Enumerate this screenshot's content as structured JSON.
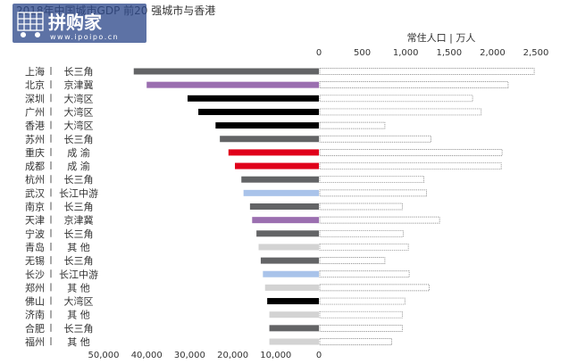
{
  "logo": {
    "name": "拼购家",
    "url": "www.ipoipo.cn"
  },
  "chart_data": {
    "type": "bar",
    "title": "2018年中国城市GDP 前20 强城市与香港",
    "right_axis_label": "常住人口 | 万人",
    "left_axis": {
      "range": [
        0,
        50000
      ],
      "ticks": [
        "50,000",
        "40,000",
        "30,000",
        "20,000",
        "10,000",
        "0"
      ]
    },
    "right_axis": {
      "range": [
        0,
        2500
      ],
      "ticks": [
        "0",
        "500",
        "1,000",
        "1,500",
        "2,000",
        "2,500"
      ]
    },
    "region_colors": {
      "长三角": "#636466",
      "京津冀": "#9b6fb0",
      "大湾区": "#000000",
      "成 渝": "#e0001b",
      "长江中游": "#a9c3ea",
      "其 他": "#d3d3d3"
    },
    "rows": [
      {
        "city": "上海",
        "region": "长三角",
        "gdp": 43000,
        "population": 2470
      },
      {
        "city": "北京",
        "region": "京津冀",
        "gdp": 40000,
        "population": 2170
      },
      {
        "city": "深圳",
        "region": "大湾区",
        "gdp": 30500,
        "population": 1760
      },
      {
        "city": "广州",
        "region": "大湾区",
        "gdp": 28000,
        "population": 1860
      },
      {
        "city": "香港",
        "region": "大湾区",
        "gdp": 24000,
        "population": 750
      },
      {
        "city": "苏州",
        "region": "长三角",
        "gdp": 23000,
        "population": 1280
      },
      {
        "city": "重庆",
        "region": "成 渝",
        "gdp": 21000,
        "population": 2100
      },
      {
        "city": "成都",
        "region": "成 渝",
        "gdp": 19500,
        "population": 2090
      },
      {
        "city": "杭州",
        "region": "长三角",
        "gdp": 18000,
        "population": 1200
      },
      {
        "city": "武汉",
        "region": "长江中游",
        "gdp": 17500,
        "population": 1230
      },
      {
        "city": "南京",
        "region": "长三角",
        "gdp": 16000,
        "population": 950
      },
      {
        "city": "天津",
        "region": "京津冀",
        "gdp": 15500,
        "population": 1380
      },
      {
        "city": "宁波",
        "region": "长三角",
        "gdp": 14500,
        "population": 960
      },
      {
        "city": "青岛",
        "region": "其 他",
        "gdp": 14000,
        "population": 1020
      },
      {
        "city": "无锡",
        "region": "长三角",
        "gdp": 13500,
        "population": 750
      },
      {
        "city": "长沙",
        "region": "长江中游",
        "gdp": 13000,
        "population": 1030
      },
      {
        "city": "郑州",
        "region": "其 他",
        "gdp": 12500,
        "population": 1260
      },
      {
        "city": "佛山",
        "region": "大湾区",
        "gdp": 12000,
        "population": 980
      },
      {
        "city": "济南",
        "region": "其 他",
        "gdp": 11500,
        "population": 950
      },
      {
        "city": "合肥",
        "region": "长三角",
        "gdp": 11500,
        "population": 950
      },
      {
        "city": "福州",
        "region": "其 他",
        "gdp": 11500,
        "population": 830
      }
    ]
  }
}
